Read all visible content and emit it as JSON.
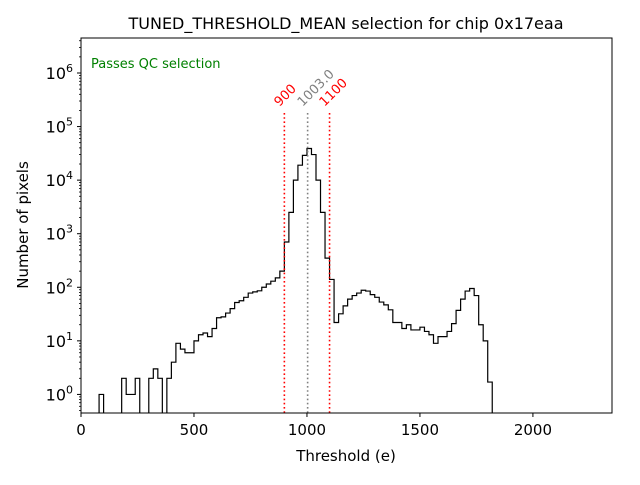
{
  "chart_data": {
    "type": "histogram",
    "title": "TUNED_THRESHOLD_MEAN selection for chip 0x17eaa",
    "xlabel": "Threshold (e)",
    "ylabel": "Number of pixels",
    "xlim": [
      0,
      2350
    ],
    "ylim": [
      0.45,
      4500000
    ],
    "yscale": "log",
    "x_ticks": [
      0,
      500,
      1000,
      1500,
      2000
    ],
    "x_tick_labels": [
      "0",
      "500",
      "1000",
      "1500",
      "2000"
    ],
    "y_ticks": [
      1,
      10,
      100,
      1000,
      10000,
      100000,
      1000000
    ],
    "y_tick_labels": [
      {
        "base": "10",
        "exp": "0"
      },
      {
        "base": "10",
        "exp": "1"
      },
      {
        "base": "10",
        "exp": "2"
      },
      {
        "base": "10",
        "exp": "3"
      },
      {
        "base": "10",
        "exp": "4"
      },
      {
        "base": "10",
        "exp": "5"
      },
      {
        "base": "10",
        "exp": "6"
      }
    ],
    "annotation": {
      "text": "Passes QC selection",
      "color": "#008000"
    },
    "cut_lines": [
      {
        "x": 900,
        "label": "900",
        "color": "#ff0000"
      },
      {
        "x": 1003.0,
        "label": "1003.0",
        "color": "#808080"
      },
      {
        "x": 1100,
        "label": "1100",
        "color": "#ff0000"
      }
    ],
    "hist_color": "#000000",
    "bins": [
      [
        80,
        100,
        1
      ],
      [
        180,
        200,
        2
      ],
      [
        200,
        220,
        1
      ],
      [
        220,
        240,
        1
      ],
      [
        240,
        260,
        2
      ],
      [
        300,
        320,
        2
      ],
      [
        320,
        340,
        3
      ],
      [
        340,
        360,
        2
      ],
      [
        380,
        400,
        2
      ],
      [
        400,
        420,
        4
      ],
      [
        420,
        440,
        9
      ],
      [
        440,
        460,
        7
      ],
      [
        460,
        480,
        6
      ],
      [
        480,
        500,
        6
      ],
      [
        500,
        520,
        10
      ],
      [
        520,
        540,
        13
      ],
      [
        540,
        560,
        14
      ],
      [
        560,
        580,
        12
      ],
      [
        580,
        600,
        17
      ],
      [
        600,
        620,
        27
      ],
      [
        620,
        640,
        28
      ],
      [
        640,
        660,
        33
      ],
      [
        660,
        680,
        40
      ],
      [
        680,
        700,
        52
      ],
      [
        700,
        720,
        56
      ],
      [
        720,
        740,
        65
      ],
      [
        740,
        760,
        78
      ],
      [
        760,
        780,
        82
      ],
      [
        780,
        800,
        86
      ],
      [
        800,
        820,
        100
      ],
      [
        820,
        840,
        115
      ],
      [
        840,
        860,
        130
      ],
      [
        860,
        880,
        150
      ],
      [
        880,
        900,
        200
      ],
      [
        900,
        920,
        700
      ],
      [
        920,
        940,
        2500
      ],
      [
        940,
        960,
        10000
      ],
      [
        960,
        980,
        19000
      ],
      [
        980,
        1000,
        29000
      ],
      [
        1000,
        1020,
        39000
      ],
      [
        1020,
        1040,
        30000
      ],
      [
        1040,
        1060,
        10000
      ],
      [
        1060,
        1080,
        2500
      ],
      [
        1080,
        1100,
        350
      ],
      [
        1100,
        1120,
        140
      ],
      [
        1120,
        1140,
        22
      ],
      [
        1140,
        1160,
        32
      ],
      [
        1160,
        1180,
        45
      ],
      [
        1180,
        1200,
        60
      ],
      [
        1200,
        1220,
        70
      ],
      [
        1220,
        1240,
        78
      ],
      [
        1240,
        1260,
        88
      ],
      [
        1260,
        1280,
        85
      ],
      [
        1280,
        1300,
        73
      ],
      [
        1300,
        1320,
        65
      ],
      [
        1320,
        1340,
        53
      ],
      [
        1340,
        1360,
        47
      ],
      [
        1360,
        1380,
        38
      ],
      [
        1380,
        1400,
        22
      ],
      [
        1400,
        1420,
        22
      ],
      [
        1420,
        1440,
        17
      ],
      [
        1440,
        1460,
        20
      ],
      [
        1460,
        1480,
        16
      ],
      [
        1480,
        1500,
        16
      ],
      [
        1500,
        1520,
        18
      ],
      [
        1520,
        1540,
        15
      ],
      [
        1540,
        1560,
        13
      ],
      [
        1560,
        1580,
        9
      ],
      [
        1580,
        1600,
        12
      ],
      [
        1600,
        1620,
        12
      ],
      [
        1620,
        1640,
        15
      ],
      [
        1640,
        1660,
        21
      ],
      [
        1660,
        1680,
        37
      ],
      [
        1680,
        1700,
        60
      ],
      [
        1700,
        1720,
        85
      ],
      [
        1720,
        1740,
        95
      ],
      [
        1740,
        1760,
        70
      ],
      [
        1760,
        1780,
        20
      ],
      [
        1780,
        1800,
        10
      ],
      [
        1800,
        1820,
        1.7
      ]
    ]
  }
}
